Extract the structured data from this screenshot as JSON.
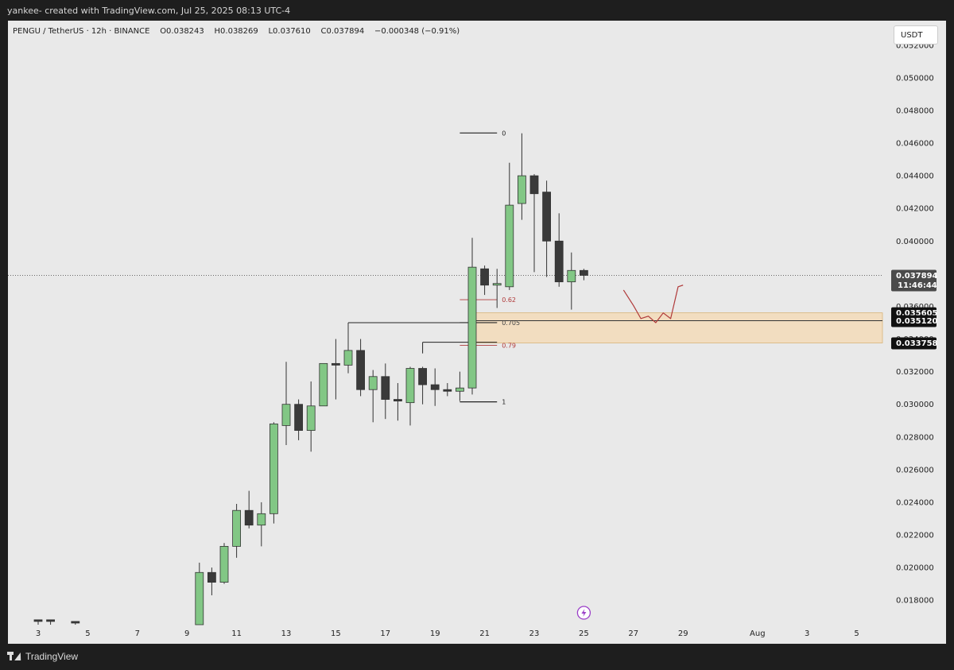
{
  "header": {
    "attribution": "yankee- created with TradingView.com, Jul 25, 2025 08:13 UTC-4"
  },
  "symbol": {
    "pair": "PENGU / TetherUS",
    "interval": "12h",
    "exchange": "BINANCE",
    "open": "O0.038243",
    "high": "H0.038269",
    "low": "L0.037610",
    "close": "C0.037894",
    "change": "−0.000348 (−0.91%)"
  },
  "currency": "USDT",
  "footer": {
    "brand": "TradingView"
  },
  "colors": {
    "bull": "#82c785",
    "bear": "#3a3a3a",
    "zone": "#f2ddc0",
    "drawing": "#b03a3a",
    "grid": "#e9e9e9"
  },
  "chart_data": {
    "type": "candlestick",
    "title": "PENGU / TetherUS",
    "ylim": [
      0.0165,
      0.0535
    ],
    "y_ticks": [
      0.018,
      0.02,
      0.022,
      0.024,
      0.026,
      0.028,
      0.03,
      0.032,
      0.034,
      0.036,
      0.038,
      0.04,
      0.042,
      0.044,
      0.046,
      0.048,
      0.05,
      0.052
    ],
    "y_tick_labels": [
      "0.018000",
      "0.020000",
      "0.022000",
      "0.024000",
      "0.026000",
      "0.028000",
      "0.030000",
      "0.032000",
      "0.034000",
      "0.036000",
      "0.038000",
      "0.040000",
      "0.042000",
      "0.044000",
      "0.046000",
      "0.048000",
      "0.050000",
      "0.052000"
    ],
    "x_tick_labels": [
      {
        "label": "3",
        "day": 3
      },
      {
        "label": "5",
        "day": 5
      },
      {
        "label": "7",
        "day": 7
      },
      {
        "label": "9",
        "day": 9
      },
      {
        "label": "11",
        "day": 11
      },
      {
        "label": "13",
        "day": 13
      },
      {
        "label": "15",
        "day": 15
      },
      {
        "label": "17",
        "day": 17
      },
      {
        "label": "19",
        "day": 19
      },
      {
        "label": "21",
        "day": 21
      },
      {
        "label": "23",
        "day": 23
      },
      {
        "label": "25",
        "day": 25
      },
      {
        "label": "27",
        "day": 27
      },
      {
        "label": "29",
        "day": 29
      },
      {
        "label": "Aug",
        "day": 32
      },
      {
        "label": "3",
        "day": 34
      },
      {
        "label": "5",
        "day": 36
      }
    ],
    "candles": [
      {
        "t": 3.0,
        "o": 0.0168,
        "h": 0.0168,
        "l": 0.0165,
        "c": 0.0167
      },
      {
        "t": 3.5,
        "o": 0.0168,
        "h": 0.0168,
        "l": 0.0165,
        "c": 0.0167
      },
      {
        "t": 4.5,
        "o": 0.0167,
        "h": 0.0167,
        "l": 0.0165,
        "c": 0.0166
      },
      {
        "t": 9.5,
        "o": 0.0165,
        "h": 0.0203,
        "l": 0.0165,
        "c": 0.0197
      },
      {
        "t": 10.0,
        "o": 0.0197,
        "h": 0.02,
        "l": 0.0183,
        "c": 0.0191
      },
      {
        "t": 10.5,
        "o": 0.0191,
        "h": 0.0215,
        "l": 0.019,
        "c": 0.0213
      },
      {
        "t": 11.0,
        "o": 0.0213,
        "h": 0.0239,
        "l": 0.0206,
        "c": 0.0235
      },
      {
        "t": 11.5,
        "o": 0.0235,
        "h": 0.0247,
        "l": 0.0224,
        "c": 0.0226
      },
      {
        "t": 12.0,
        "o": 0.0226,
        "h": 0.024,
        "l": 0.0213,
        "c": 0.0233
      },
      {
        "t": 12.5,
        "o": 0.0233,
        "h": 0.0289,
        "l": 0.0227,
        "c": 0.0288
      },
      {
        "t": 13.0,
        "o": 0.0287,
        "h": 0.0326,
        "l": 0.0275,
        "c": 0.03
      },
      {
        "t": 13.5,
        "o": 0.03,
        "h": 0.0303,
        "l": 0.0278,
        "c": 0.0284
      },
      {
        "t": 14.0,
        "o": 0.0284,
        "h": 0.0314,
        "l": 0.0271,
        "c": 0.0299
      },
      {
        "t": 14.5,
        "o": 0.0299,
        "h": 0.0325,
        "l": 0.0299,
        "c": 0.0325
      },
      {
        "t": 15.0,
        "o": 0.0325,
        "h": 0.034,
        "l": 0.0303,
        "c": 0.0324
      },
      {
        "t": 15.5,
        "o": 0.0324,
        "h": 0.035,
        "l": 0.0319,
        "c": 0.0333
      },
      {
        "t": 16.0,
        "o": 0.0333,
        "h": 0.034,
        "l": 0.0305,
        "c": 0.0309
      },
      {
        "t": 16.5,
        "o": 0.0309,
        "h": 0.0321,
        "l": 0.0289,
        "c": 0.0317
      },
      {
        "t": 17.0,
        "o": 0.0317,
        "h": 0.0325,
        "l": 0.0291,
        "c": 0.0303
      },
      {
        "t": 17.5,
        "o": 0.0303,
        "h": 0.0313,
        "l": 0.029,
        "c": 0.0302
      },
      {
        "t": 18.0,
        "o": 0.0301,
        "h": 0.0323,
        "l": 0.0287,
        "c": 0.0322
      },
      {
        "t": 18.5,
        "o": 0.0322,
        "h": 0.0323,
        "l": 0.03,
        "c": 0.0312
      },
      {
        "t": 19.0,
        "o": 0.0312,
        "h": 0.0322,
        "l": 0.0299,
        "c": 0.0309
      },
      {
        "t": 19.5,
        "o": 0.0309,
        "h": 0.0313,
        "l": 0.0305,
        "c": 0.0308
      },
      {
        "t": 20.0,
        "o": 0.0308,
        "h": 0.032,
        "l": 0.0302,
        "c": 0.031
      },
      {
        "t": 20.5,
        "o": 0.031,
        "h": 0.0402,
        "l": 0.0306,
        "c": 0.0384
      },
      {
        "t": 21.0,
        "o": 0.0383,
        "h": 0.0385,
        "l": 0.0367,
        "c": 0.0373
      },
      {
        "t": 21.5,
        "o": 0.0373,
        "h": 0.0383,
        "l": 0.0359,
        "c": 0.0374
      },
      {
        "t": 22.0,
        "o": 0.0372,
        "h": 0.0448,
        "l": 0.037,
        "c": 0.0422
      },
      {
        "t": 22.5,
        "o": 0.0423,
        "h": 0.0466,
        "l": 0.0413,
        "c": 0.044
      },
      {
        "t": 23.0,
        "o": 0.044,
        "h": 0.0441,
        "l": 0.0381,
        "c": 0.0429
      },
      {
        "t": 23.5,
        "o": 0.043,
        "h": 0.0437,
        "l": 0.0378,
        "c": 0.04
      },
      {
        "t": 24.0,
        "o": 0.04,
        "h": 0.0417,
        "l": 0.0372,
        "c": 0.0375
      },
      {
        "t": 24.5,
        "o": 0.0375,
        "h": 0.0393,
        "l": 0.0358,
        "c": 0.0382
      },
      {
        "t": 25.0,
        "o": 0.0382,
        "h": 0.0383,
        "l": 0.0376,
        "c": 0.0379
      }
    ],
    "current_price": {
      "value": 0.037894,
      "label": "0.037894",
      "countdown": "11:46:44"
    },
    "fibonacci": {
      "anchor_high": 0.04662,
      "anchor_low": 0.03015,
      "levels": [
        {
          "ratio": 0,
          "label": "0",
          "price": 0.04662,
          "color": "#222222"
        },
        {
          "ratio": 0.62,
          "label": "0.62",
          "price": 0.03641,
          "color": "#b03a3a"
        },
        {
          "ratio": 0.705,
          "label": "0.705",
          "price": 0.03501,
          "color": "#444444"
        },
        {
          "ratio": 0.79,
          "label": "0.79",
          "price": 0.03361,
          "color": "#b03a3a"
        },
        {
          "ratio": 1,
          "label": "1",
          "price": 0.03015,
          "color": "#222222"
        }
      ]
    },
    "zone": {
      "top": 0.035605,
      "mid": 0.03512,
      "bottom": 0.033758
    },
    "price_tags": [
      {
        "value": 0.035605,
        "label": "0.035605"
      },
      {
        "value": 0.03512,
        "label": "0.035120"
      },
      {
        "value": 0.033758,
        "label": "0.033758"
      }
    ],
    "level_lines": [
      {
        "price": 0.035,
        "from_day": 15.5
      },
      {
        "price": 0.0338,
        "from_day": 18.5
      }
    ],
    "projection_path": [
      {
        "t": 26.6,
        "p": 0.037
      },
      {
        "t": 27.0,
        "p": 0.03605
      },
      {
        "t": 27.3,
        "p": 0.03525
      },
      {
        "t": 27.6,
        "p": 0.0354
      },
      {
        "t": 27.9,
        "p": 0.035
      },
      {
        "t": 28.2,
        "p": 0.0356
      },
      {
        "t": 28.5,
        "p": 0.03525
      },
      {
        "t": 28.8,
        "p": 0.0372
      },
      {
        "t": 29.0,
        "p": 0.0373
      }
    ],
    "events": [
      {
        "day": 25,
        "icon": "lightning-icon"
      }
    ]
  }
}
